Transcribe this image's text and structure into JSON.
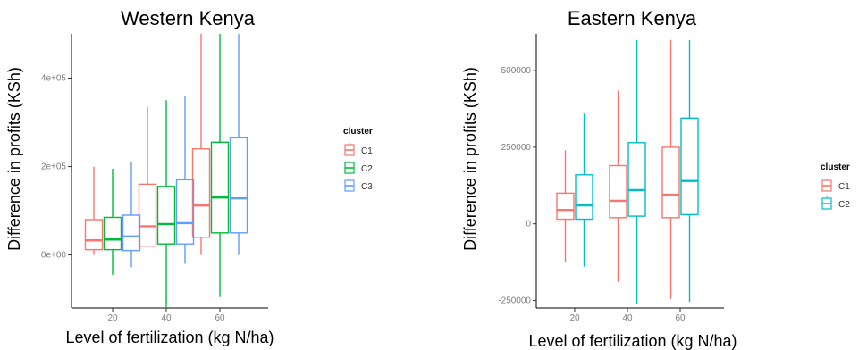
{
  "chart_data": [
    {
      "type": "boxplot",
      "title": "Western Kenya",
      "xlabel": "Level of fertilization (kg N/ha)",
      "ylabel": "Difference in profits (KSh)",
      "categories": [
        "20",
        "40",
        "60"
      ],
      "ylim": [
        -120000,
        500000
      ],
      "yticks": [
        {
          "value": 0,
          "label": "0e+00"
        },
        {
          "value": 200000,
          "label": "2e+05"
        },
        {
          "value": 400000,
          "label": "4e+05"
        }
      ],
      "legend": {
        "title": "cluster",
        "position": "right"
      },
      "grid": false,
      "series": [
        {
          "name": "C1",
          "color": "#F8766D",
          "boxes": [
            {
              "whisker_low": 0,
              "q1": 12000,
              "median": 33000,
              "q3": 80000,
              "whisker_high": 200000
            },
            {
              "whisker_low": 20000,
              "q1": 20000,
              "median": 65000,
              "q3": 160000,
              "whisker_high": 335000
            },
            {
              "whisker_low": 0,
              "q1": 40000,
              "median": 112000,
              "q3": 240000,
              "whisker_high": 500000
            }
          ]
        },
        {
          "name": "C2",
          "color": "#00BA38",
          "boxes": [
            {
              "whisker_low": -45000,
              "q1": 12000,
              "median": 35000,
              "q3": 85000,
              "whisker_high": 195000
            },
            {
              "whisker_low": -120000,
              "q1": 25000,
              "median": 70000,
              "q3": 155000,
              "whisker_high": 350000
            },
            {
              "whisker_low": -95000,
              "q1": 50000,
              "median": 130000,
              "q3": 255000,
              "whisker_high": 500000
            }
          ]
        },
        {
          "name": "C3",
          "color": "#619CFF",
          "boxes": [
            {
              "whisker_low": -28000,
              "q1": 10000,
              "median": 42000,
              "q3": 90000,
              "whisker_high": 210000
            },
            {
              "whisker_low": -20000,
              "q1": 25000,
              "median": 72000,
              "q3": 170000,
              "whisker_high": 360000
            },
            {
              "whisker_low": 0,
              "q1": 50000,
              "median": 128000,
              "q3": 265000,
              "whisker_high": 500000
            }
          ]
        }
      ]
    },
    {
      "type": "boxplot",
      "title": "Eastern Kenya",
      "xlabel": "Level of fertilization (kg N/ha)",
      "ylabel": "Difference in profits (KSh)",
      "categories": [
        "20",
        "40",
        "60"
      ],
      "ylim": [
        -275000,
        620000
      ],
      "yticks": [
        {
          "value": -250000,
          "label": "-250000"
        },
        {
          "value": 0,
          "label": "0"
        },
        {
          "value": 250000,
          "label": "250000"
        },
        {
          "value": 500000,
          "label": "500000"
        }
      ],
      "legend": {
        "title": "cluster",
        "position": "right"
      },
      "grid": false,
      "series": [
        {
          "name": "C1",
          "color": "#F8766D",
          "boxes": [
            {
              "whisker_low": -125000,
              "q1": 15000,
              "median": 45000,
              "q3": 100000,
              "whisker_high": 240000
            },
            {
              "whisker_low": -190000,
              "q1": 20000,
              "median": 75000,
              "q3": 190000,
              "whisker_high": 435000
            },
            {
              "whisker_low": -245000,
              "q1": 20000,
              "median": 95000,
              "q3": 250000,
              "whisker_high": 600000
            }
          ]
        },
        {
          "name": "C2",
          "color": "#00BFC4",
          "boxes": [
            {
              "whisker_low": -140000,
              "q1": 15000,
              "median": 60000,
              "q3": 160000,
              "whisker_high": 360000
            },
            {
              "whisker_low": -260000,
              "q1": 25000,
              "median": 110000,
              "q3": 265000,
              "whisker_high": 600000
            },
            {
              "whisker_low": -255000,
              "q1": 30000,
              "median": 140000,
              "q3": 345000,
              "whisker_high": 600000
            }
          ]
        }
      ]
    }
  ]
}
